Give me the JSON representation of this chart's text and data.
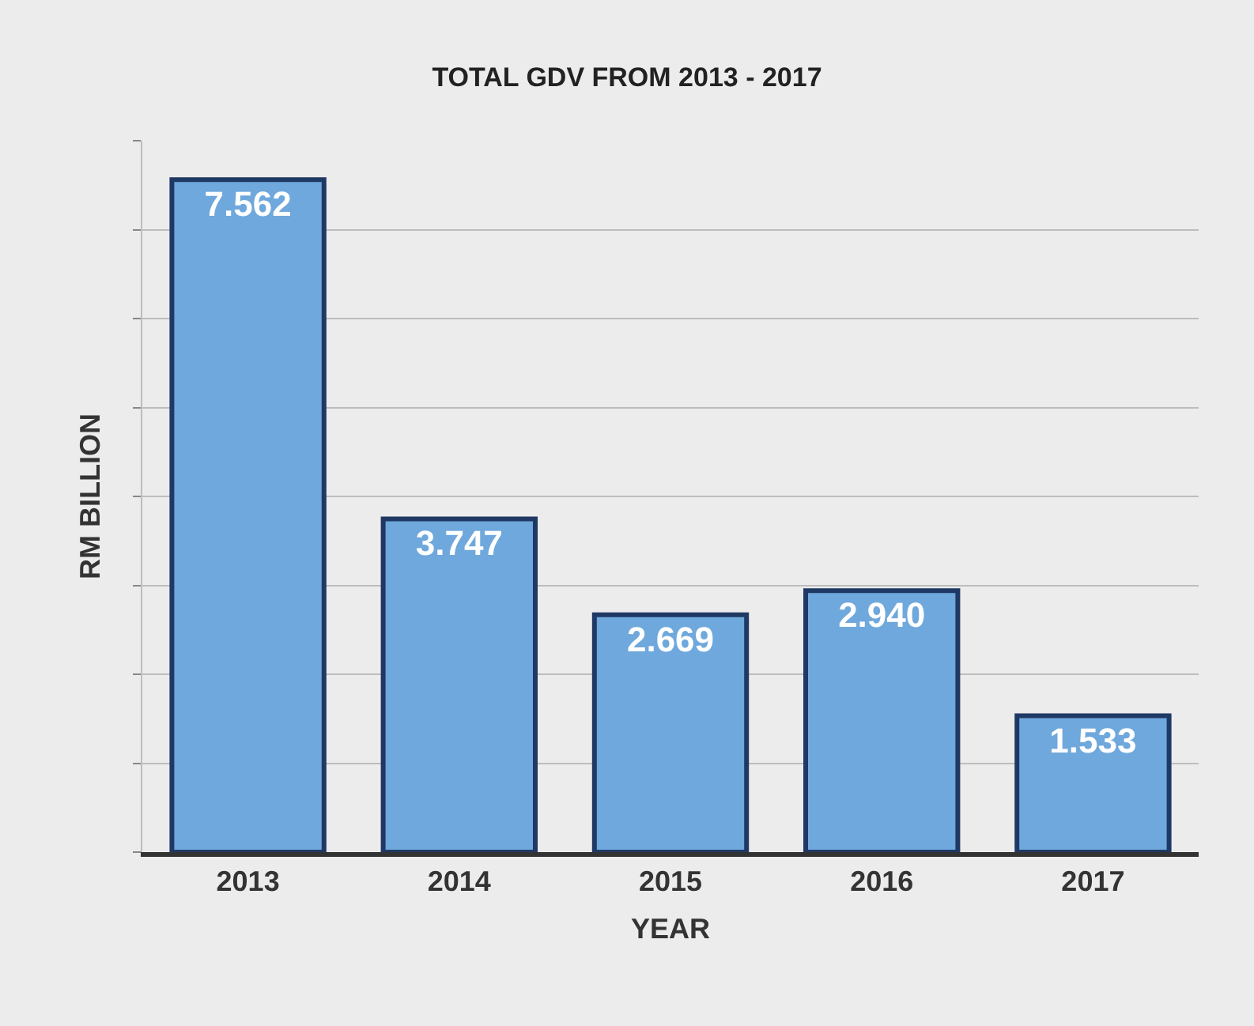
{
  "chart_data": {
    "type": "bar",
    "title": "TOTAL GDV FROM 2013 - 2017",
    "xlabel": "YEAR",
    "ylabel": "RM BILLION",
    "categories": [
      "2013",
      "2014",
      "2015",
      "2016",
      "2017"
    ],
    "values": [
      7.562,
      3.747,
      2.669,
      2.94,
      1.533
    ],
    "value_labels": [
      "7.562",
      "3.747",
      "2.669",
      "2.940",
      "1.533"
    ],
    "color": "#6fa8dc",
    "ylim": [
      0,
      8
    ],
    "yticks": [
      {
        "value": 0,
        "label": null
      },
      {
        "value": 1,
        "label": null
      },
      {
        "value": 2,
        "label": null
      },
      {
        "value": 3,
        "label": null
      },
      {
        "value": 4,
        "label": null
      },
      {
        "value": 5,
        "label": null
      },
      {
        "value": 6,
        "label": null
      },
      {
        "value": 7,
        "label": null
      },
      {
        "value": 8,
        "label": null
      }
    ],
    "grid": "y",
    "tick_labels": "x",
    "legend": false
  }
}
